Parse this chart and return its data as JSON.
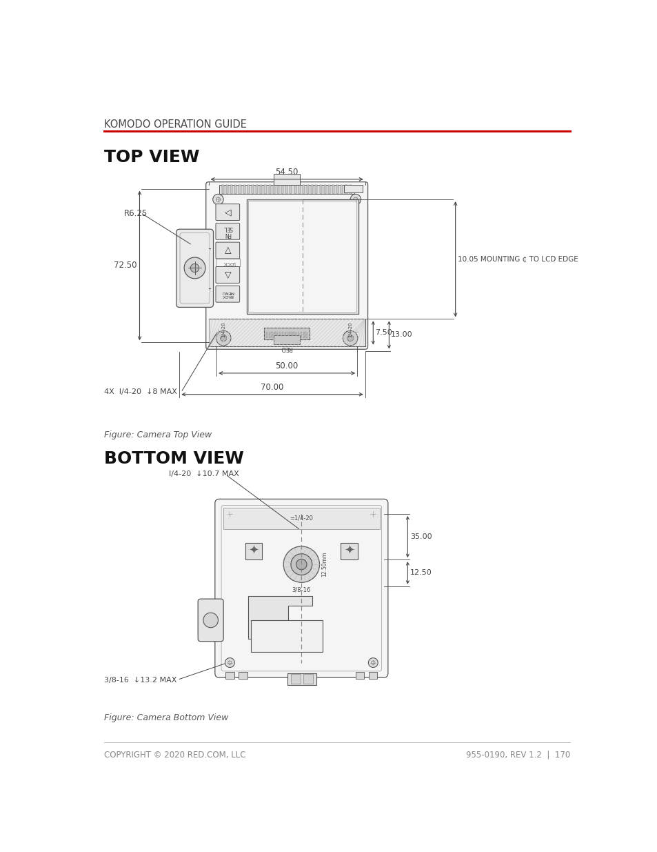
{
  "page_title": "KOMODO OPERATION GUIDE",
  "title_color": "#444444",
  "red_line_color": "#cc0000",
  "section1_title": "TOP VIEW",
  "section2_title": "BOTTOM VIEW",
  "fig_caption1": "Figure: Camera Top View",
  "fig_caption2": "Figure: Camera Bottom View",
  "footer_left": "COPYRIGHT © 2020 RED.COM, LLC",
  "footer_right": "955-0190, REV 1.2  |  170",
  "bg_color": "#ffffff",
  "drawing_color": "#555555",
  "dim_color": "#444444",
  "top_annotations": {
    "width_top": "54.50",
    "radius": "R6.25",
    "height_left": "72.50",
    "screw_label": "4X  I/4-20  ↓8 MAX",
    "width_bottom1": "50.00",
    "width_bottom2": "70.00",
    "dim_right1": "10.05 MOUNTING ¢ TO LCD EDGE",
    "dim_right2": "13.00",
    "dim_right3": "7.50"
  },
  "bottom_annotations": {
    "screw1": "I/4-20  ↓10.7 MAX",
    "screw2": "3/8-16  ↓13.2 MAX",
    "dim_right1": "35.00",
    "dim_right2": "12.50",
    "label_center": "1/4-20",
    "label_bottom": "3/8-16"
  }
}
